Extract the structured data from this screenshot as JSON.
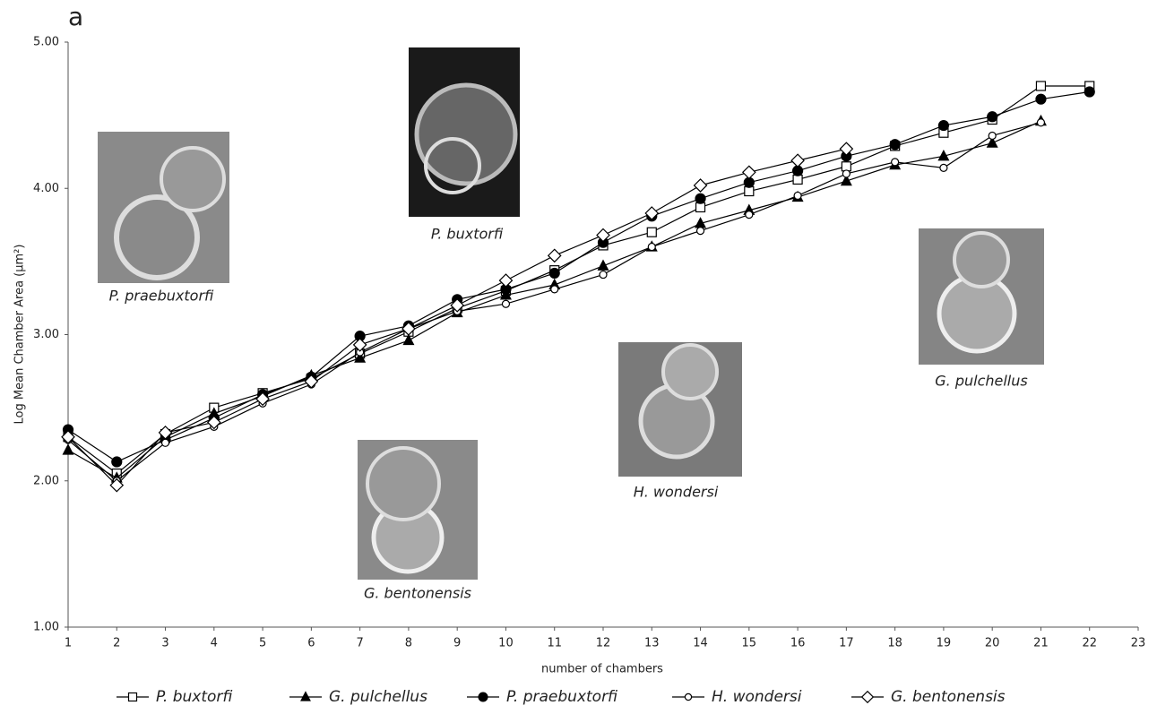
{
  "chart_data": {
    "type": "line",
    "panel_label": "a",
    "x_label": "number of chambers",
    "y_label": "Log Mean Chamber Area (µm²)",
    "x": [
      1,
      2,
      3,
      4,
      5,
      6,
      7,
      8,
      9,
      10,
      11,
      12,
      13,
      14,
      15,
      16,
      17,
      18,
      19,
      20,
      21,
      22
    ],
    "xlim": [
      1,
      23
    ],
    "xticks": [
      1,
      2,
      3,
      4,
      5,
      6,
      7,
      8,
      9,
      10,
      11,
      12,
      13,
      14,
      15,
      16,
      17,
      18,
      19,
      20,
      21,
      22,
      23
    ],
    "ylim": [
      1,
      5
    ],
    "yticks": [
      {
        "value": 1,
        "label": "1.00"
      },
      {
        "value": 2,
        "label": "2.00"
      },
      {
        "value": 3,
        "label": "3.00"
      },
      {
        "value": 4,
        "label": "4.00"
      },
      {
        "value": 5,
        "label": "5.00"
      }
    ],
    "grid": false,
    "legend": "bottom",
    "series": [
      {
        "name": "P. buxtorfi",
        "color": "#000000",
        "marker": "square",
        "marker_fill": "#ffffff",
        "values": [
          2.3,
          2.05,
          2.32,
          2.5,
          2.6,
          2.7,
          2.87,
          3.02,
          3.18,
          3.3,
          3.44,
          3.61,
          3.7,
          3.87,
          3.98,
          4.06,
          4.15,
          4.29,
          4.38,
          4.47,
          4.7,
          4.7
        ]
      },
      {
        "name": "G. pulchellus",
        "color": "#000000",
        "marker": "triangle",
        "marker_fill": "#000000",
        "values": [
          2.21,
          2.02,
          2.3,
          2.46,
          2.58,
          2.72,
          2.84,
          2.96,
          3.15,
          3.27,
          3.34,
          3.47,
          3.6,
          3.76,
          3.85,
          3.94,
          4.05,
          4.16,
          4.22,
          4.31,
          4.46,
          null
        ]
      },
      {
        "name": "P. praebuxtorfi",
        "color": "#000000",
        "marker": "circle",
        "marker_fill": "#000000",
        "values": [
          2.35,
          2.13,
          2.28,
          2.43,
          2.59,
          2.71,
          2.99,
          3.06,
          3.24,
          3.31,
          3.42,
          3.63,
          3.81,
          3.93,
          4.04,
          4.12,
          4.22,
          4.3,
          4.43,
          4.49,
          4.61,
          4.66
        ]
      },
      {
        "name": "H. wondersi",
        "color": "#000000",
        "marker": "small-circle",
        "marker_fill": "#ffffff",
        "values": [
          2.28,
          2.0,
          2.26,
          2.37,
          2.53,
          2.66,
          2.88,
          3.04,
          3.16,
          3.21,
          3.31,
          3.41,
          3.6,
          3.71,
          3.82,
          3.95,
          4.1,
          4.18,
          4.14,
          4.36,
          4.45,
          null
        ]
      },
      {
        "name": "G. bentonensis",
        "color": "#000000",
        "marker": "diamond",
        "marker_fill": "#ffffff",
        "values": [
          2.3,
          1.97,
          2.33,
          2.4,
          2.56,
          2.68,
          2.93,
          3.04,
          3.2,
          3.37,
          3.54,
          3.68,
          3.83,
          4.02,
          4.11,
          4.19,
          4.27,
          null,
          null,
          null,
          null,
          null
        ]
      }
    ],
    "annotations": [
      {
        "text": "P. praebuxtorfi"
      },
      {
        "text": "P. buxtorfi"
      },
      {
        "text": "G. bentonensis"
      },
      {
        "text": "H. wondersi"
      },
      {
        "text": "G. pulchellus"
      }
    ]
  }
}
